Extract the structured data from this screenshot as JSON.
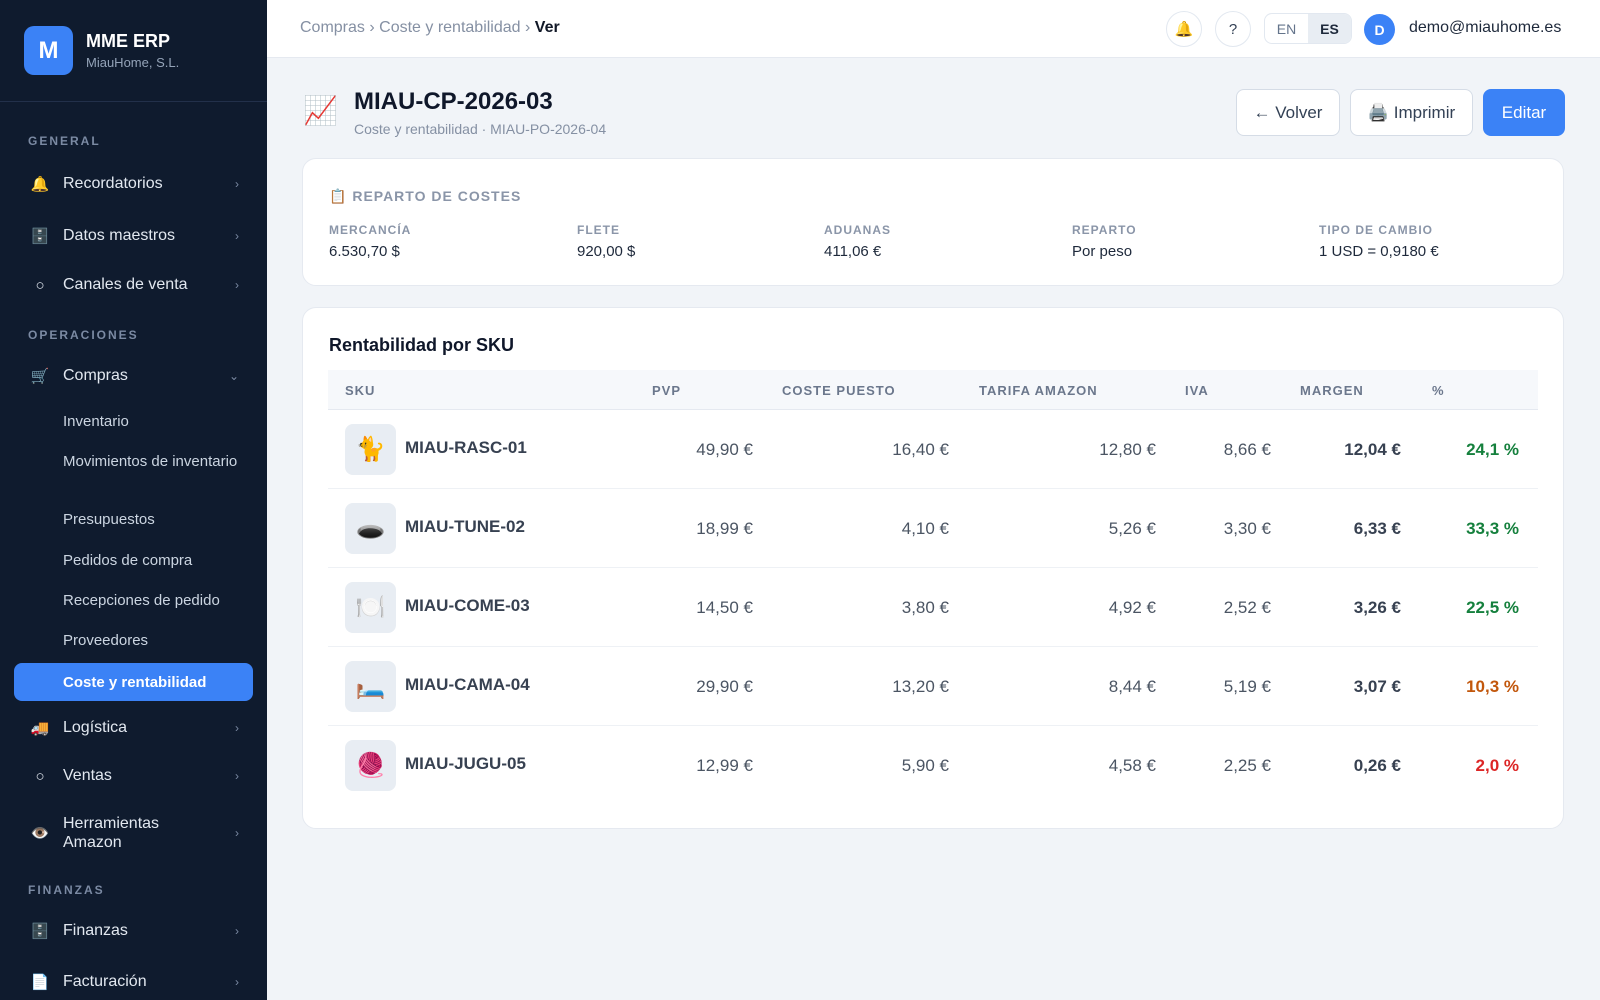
{
  "brand": {
    "logo_letter": "M",
    "name": "MME ERP",
    "company": "MiauHome, S.L."
  },
  "sidebar": {
    "sections": {
      "general": "GENERAL",
      "operaciones": "OPERACIONES",
      "finanzas": "FINANZAS"
    },
    "items": [
      {
        "label": "Recordatorios",
        "icon": "bell-icon",
        "glyph": "🔔"
      },
      {
        "label": "Datos maestros",
        "icon": "cabinet-icon",
        "glyph": "🗄️"
      },
      {
        "label": "Canales de venta",
        "icon": "circle-icon",
        "glyph": "○"
      },
      {
        "label": "Compras",
        "icon": "cart-icon",
        "glyph": "🛒"
      },
      {
        "label": "Logística",
        "icon": "truck-icon",
        "glyph": "🚚"
      },
      {
        "label": "Ventas",
        "icon": "circle-icon",
        "glyph": "○"
      },
      {
        "label": "Herramientas Amazon",
        "icon": "eye-icon",
        "glyph": "👁️"
      },
      {
        "label": "Finanzas",
        "icon": "cabinet-icon",
        "glyph": "🗄️"
      },
      {
        "label": "Facturación",
        "icon": "document-icon",
        "glyph": "📄"
      }
    ],
    "compras_sub": [
      "Inventario",
      "Movimientos de inventario",
      "Presupuestos",
      "Pedidos de compra",
      "Recepciones de pedido",
      "Proveedores",
      "Coste y rentabilidad"
    ]
  },
  "topbar": {
    "breadcrumb": {
      "part1": "Compras",
      "sep": "›",
      "part2": "Coste y rentabilidad",
      "current": "Ver"
    },
    "help": "?",
    "lang_en": "EN",
    "lang_es": "ES",
    "avatar_letter": "D",
    "user_email": "demo@miauhome.es"
  },
  "header": {
    "title": "MIAU-CP-2026-03",
    "subtitle": "Coste y rentabilidad · MIAU-PO-2026-04",
    "back_label": "← Volver",
    "print_label": "🖨️ Imprimir",
    "edit_label": "Editar"
  },
  "costs": {
    "heading": "REPARTO DE COSTES",
    "stats": [
      {
        "label": "MERCANCÍA",
        "value": "6.530,70 $"
      },
      {
        "label": "FLETE",
        "value": "920,00 $"
      },
      {
        "label": "ADUANAS",
        "value": "411,06 €"
      },
      {
        "label": "REPARTO",
        "value": "Por peso"
      },
      {
        "label": "TIPO DE CAMBIO",
        "value": "1 USD = 0,9180 €"
      }
    ]
  },
  "profitability": {
    "title": "Rentabilidad por SKU",
    "columns": [
      "SKU",
      "PVP",
      "COSTE PUESTO",
      "TARIFA AMAZON",
      "IVA",
      "MARGEN",
      "%"
    ],
    "rows": [
      {
        "icon": "cat-icon",
        "glyph": "🐈",
        "sku": "MIAU-RASC-01",
        "pvp": "49,90 €",
        "coste": "16,40 €",
        "tarifa": "12,80 €",
        "iva": "8,66 €",
        "margen": "12,04 €",
        "pct": "24,1 %",
        "pct_color": "#15803d"
      },
      {
        "icon": "tunnel-icon",
        "glyph": "🕳️",
        "sku": "MIAU-TUNE-02",
        "pvp": "18,99 €",
        "coste": "4,10 €",
        "tarifa": "5,26 €",
        "iva": "3,30 €",
        "margen": "6,33 €",
        "pct": "33,3 %",
        "pct_color": "#15803d"
      },
      {
        "icon": "plate-icon",
        "glyph": "🍽️",
        "sku": "MIAU-COME-03",
        "pvp": "14,50 €",
        "coste": "3,80 €",
        "tarifa": "4,92 €",
        "iva": "2,52 €",
        "margen": "3,26 €",
        "pct": "22,5 %",
        "pct_color": "#15803d"
      },
      {
        "icon": "bed-icon",
        "glyph": "🛏️",
        "sku": "MIAU-CAMA-04",
        "pvp": "29,90 €",
        "coste": "13,20 €",
        "tarifa": "8,44 €",
        "iva": "5,19 €",
        "margen": "3,07 €",
        "pct": "10,3 %",
        "pct_color": "#c2570c"
      },
      {
        "icon": "yarn-icon",
        "glyph": "🧶",
        "sku": "MIAU-JUGU-05",
        "pvp": "12,99 €",
        "coste": "5,90 €",
        "tarifa": "4,58 €",
        "iva": "2,25 €",
        "margen": "0,26 €",
        "pct": "2,0 %",
        "pct_color": "#dc2626"
      }
    ]
  },
  "colors": {
    "accent": "#3b82f6",
    "sidebar_bg": "#0f1b2e"
  }
}
